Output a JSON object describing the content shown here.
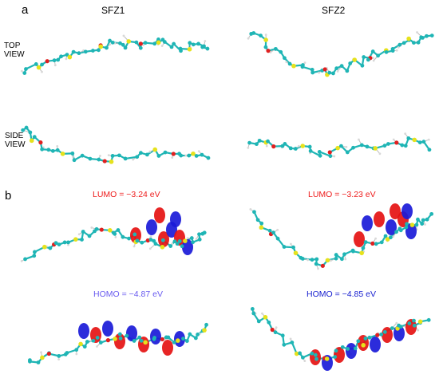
{
  "panels": {
    "a": "a",
    "b": "b"
  },
  "columns": {
    "left": "SFZ1",
    "right": "SFZ2"
  },
  "views": {
    "top_line1": "TOP",
    "top_line2": "VIEW",
    "side_line1": "SIDE",
    "side_line2": "VIEW"
  },
  "energies": {
    "sfz1_lumo": "LUMO = −3.24 eV",
    "sfz2_lumo": "LUMO = −3.23 eV",
    "sfz1_homo": "HOMO = −4.87 eV",
    "sfz2_homo": "HOMO = −4.85 eV"
  },
  "colors": {
    "carbon": "#1fb5b5",
    "sulfur": "#e6e21c",
    "oxygen": "#e02020",
    "hydrogen": "#d8d8d8",
    "lobe_red": "#e51212",
    "lobe_blue": "#1a1ad8"
  }
}
